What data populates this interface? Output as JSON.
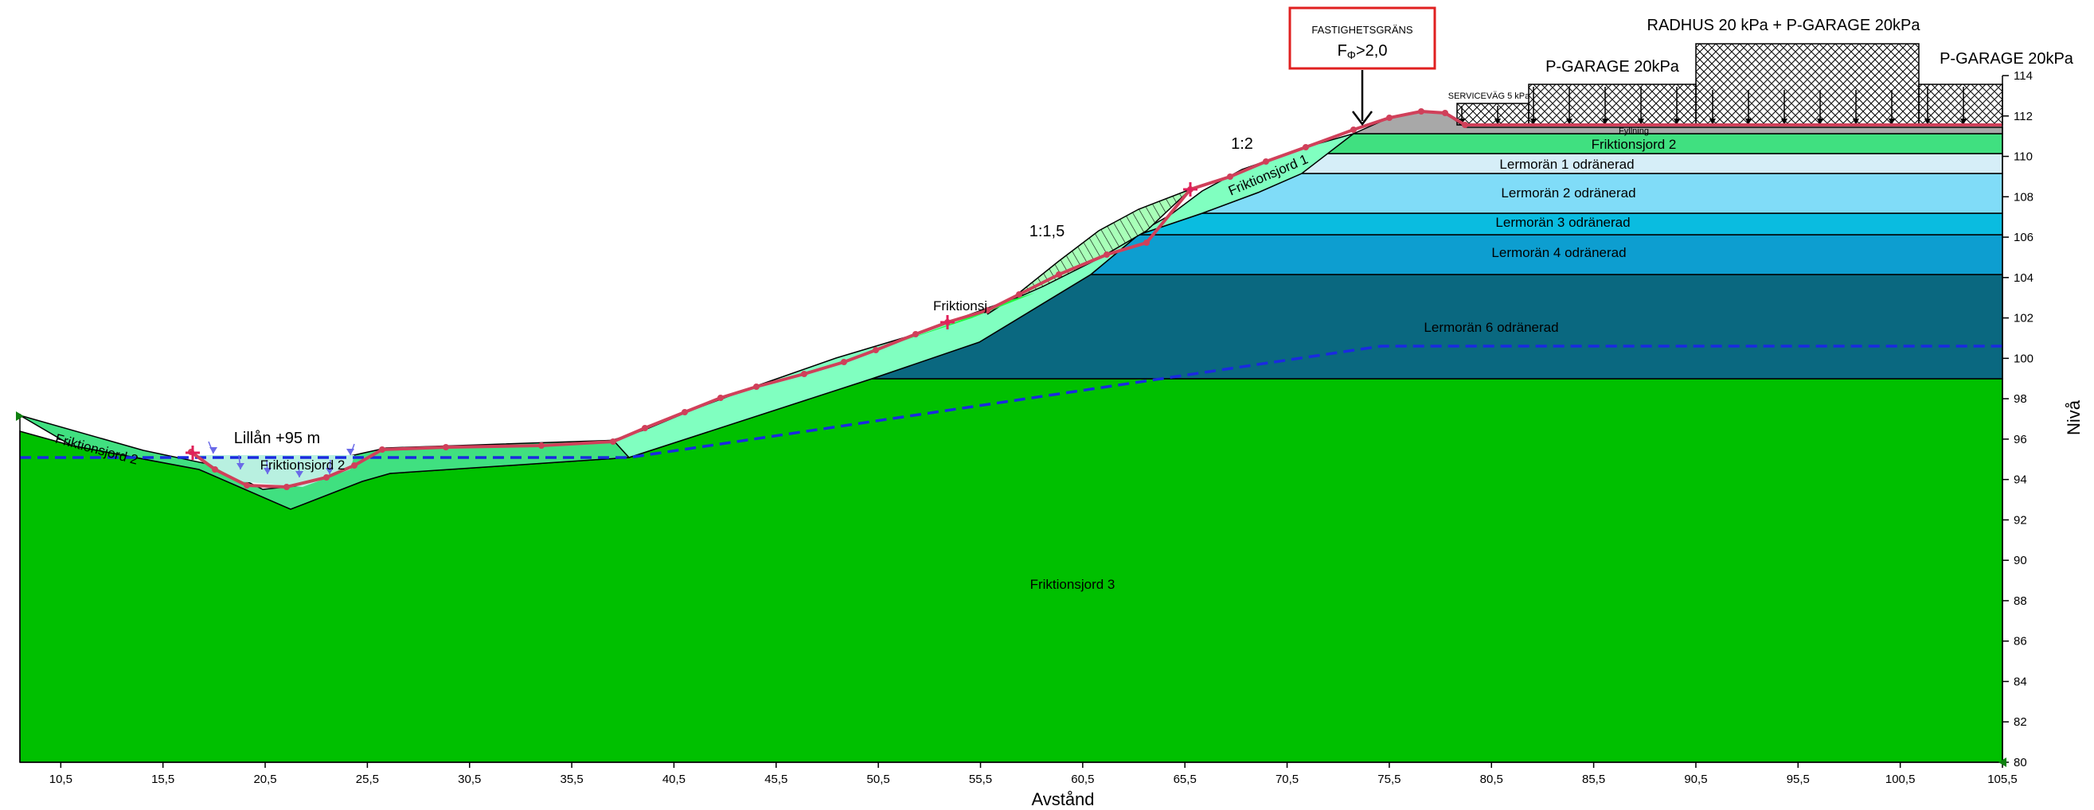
{
  "axes": {
    "x_label": "Avstånd",
    "y_label": "Nivå",
    "x_ticks": [
      "10,5",
      "15,5",
      "20,5",
      "25,5",
      "30,5",
      "35,5",
      "40,5",
      "45,5",
      "50,5",
      "55,5",
      "60,5",
      "65,5",
      "70,5",
      "75,5",
      "80,5",
      "85,5",
      "90,5",
      "95,5",
      "100,5",
      "105,5"
    ],
    "y_ticks": [
      "80",
      "82",
      "84",
      "86",
      "88",
      "90",
      "92",
      "94",
      "96",
      "98",
      "100",
      "102",
      "104",
      "106",
      "108",
      "110",
      "112",
      "114"
    ],
    "x_range": [
      8.5,
      105.5
    ],
    "y_range": [
      80,
      114
    ]
  },
  "layers": {
    "friktionsjord3": "Friktionsjord 3",
    "lermoran6": "Lermorän 6 odränerad",
    "lermoran4": "Lermorän 4 odränerad",
    "lermoran3": "Lermorän 3 odränerad",
    "lermoran2": "Lermorän 2 odränerad",
    "lermoran1": "Lermorän 1 odränerad",
    "friktionsjord2_top": "Friktionsjord 2",
    "friktionsjord2_left": "Friktionsjord 2",
    "friktionsjord2_valley": "Friktionsjord 2",
    "friktionsjord1": "Friktionsjord 1",
    "friktionsjord_slope": "Friktionsj",
    "fyllning": "Fyllning"
  },
  "annotations": {
    "river": "Lillån +95 m",
    "slope_upper": "1:2",
    "slope_lower": "1:1,5"
  },
  "boundary_box": {
    "title": "FASTIGHETSGRÄNS",
    "factor_symbol": "F",
    "factor_subscript": "Φ",
    "factor_value": ">2,0"
  },
  "loads": {
    "servicevag": "SERVICEVÄG 5 kPa",
    "pgarage_left": "P-GARAGE 20kPa",
    "radhus": "RADHUS 20 kPa + P-GARAGE 20kPa",
    "pgarage_right": "P-GARAGE 20kPa"
  },
  "colors": {
    "friktionsjord3": "#00c000",
    "friktionsjord2": "#40e080",
    "friktionsjord1": "#80ffc0",
    "lermoran6": "#0a6880",
    "lermoran4": "#0d9ed0",
    "lermoran3": "#0abce0",
    "lermoran2": "#80dcf8",
    "lermoran1": "#d6eef8",
    "fyllning": "#a8a8a8",
    "slip_surface": "#d0405a",
    "groundwater": "#1a2ae0",
    "boundary_box": "#e02020"
  }
}
